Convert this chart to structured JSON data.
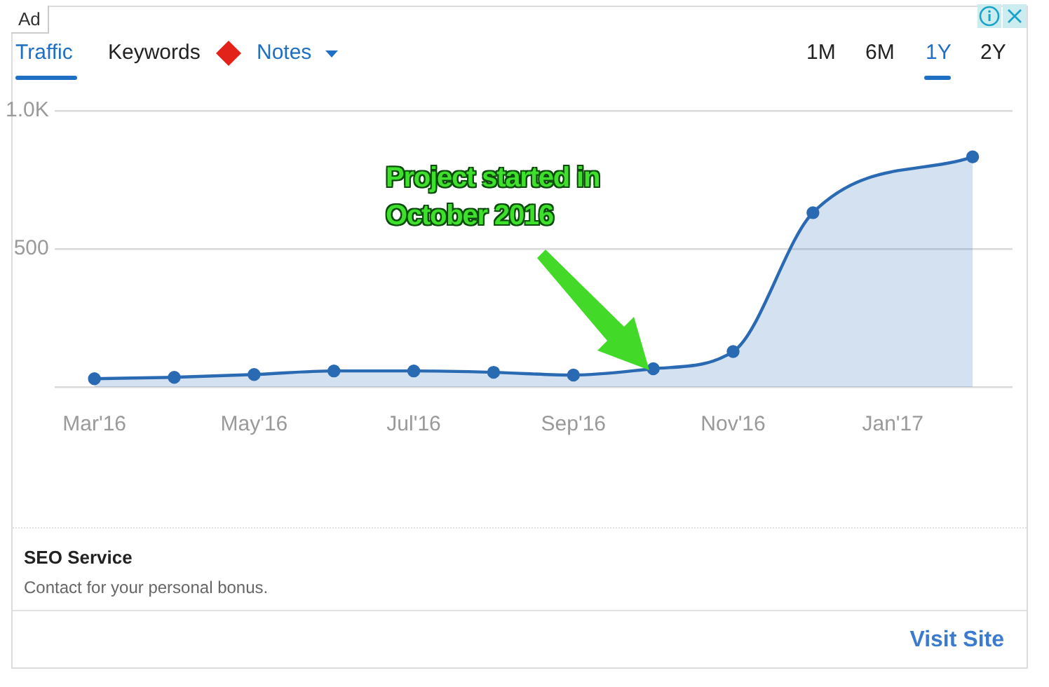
{
  "chart_data": {
    "type": "area",
    "categories": [
      "Mar'16",
      null,
      "May'16",
      null,
      "Jul'16",
      null,
      "Sep'16",
      null,
      "Nov'16",
      null,
      "Jan'17",
      null
    ],
    "series": [
      {
        "color": "#2a6ab3",
        "values": [
          30,
          35,
          45,
          58,
          58,
          53,
          43,
          66,
          128,
          631,
          null,
          833
        ]
      }
    ],
    "ylim": [
      0,
      1000
    ],
    "yticks": [
      {
        "value": 0,
        "label": null
      },
      500,
      {
        "value": 1000,
        "label": "1.0K"
      }
    ],
    "grid": "y",
    "marker": "circle",
    "annotations": [
      "Ad",
      "Traffic",
      "Keywords",
      "Notes",
      "1M",
      "6M",
      "1Y",
      "2Y",
      "Project started in October 2016",
      "SEO Service",
      "Contact for your personal bonus.",
      "Visit Site"
    ]
  }
}
